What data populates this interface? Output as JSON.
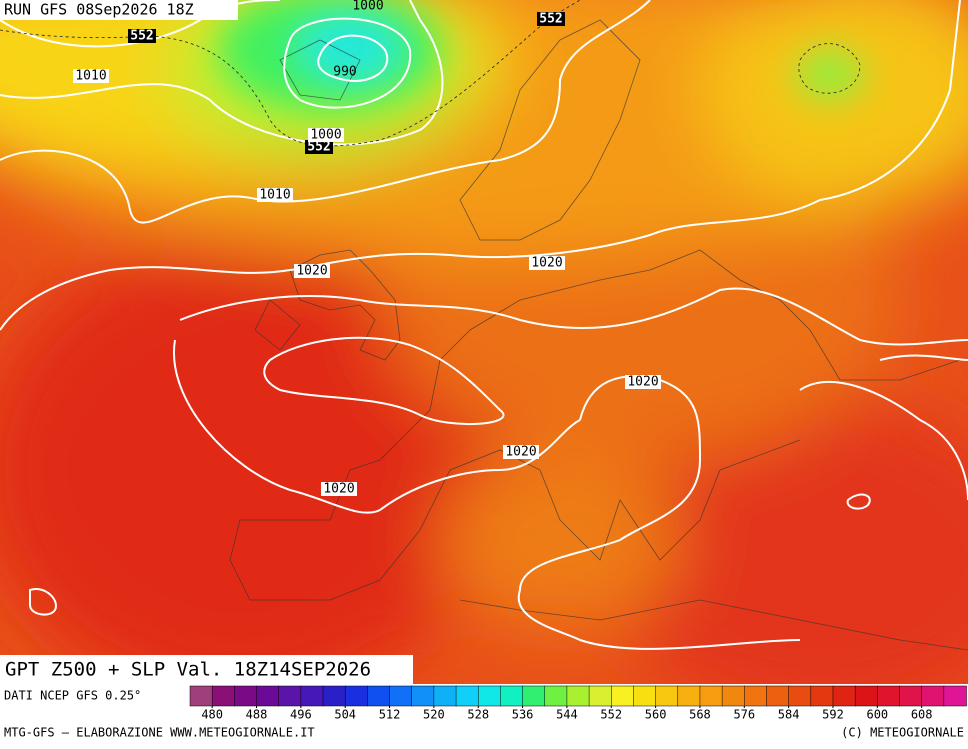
{
  "header": {
    "run": "RUN GFS 08Sep2026 18Z"
  },
  "title": "GPT Z500 + SLP Val. 18Z14SEP2026",
  "map_labels": {
    "dark": [
      552,
      552,
      552
    ],
    "light": [
      1000,
      1010,
      990,
      1000,
      1010,
      1020,
      1020,
      1020,
      1020,
      1020
    ]
  },
  "colorbar": {
    "caption": "DATI NCEP GFS 0.25°",
    "lim": [
      476,
      616
    ],
    "ticks": [
      480,
      488,
      496,
      504,
      512,
      520,
      528,
      536,
      544,
      552,
      560,
      568,
      576,
      584,
      592,
      600,
      608
    ],
    "colors": [
      "#a0407a",
      "#8a1078",
      "#7a0a86",
      "#6a0a96",
      "#5a14a8",
      "#4618b8",
      "#2a20c8",
      "#1a30e0",
      "#1050f0",
      "#1070f8",
      "#1090f8",
      "#10b0f8",
      "#10d0f8",
      "#10e8e8",
      "#10f0c0",
      "#30f070",
      "#70f040",
      "#a8f030",
      "#d8f030",
      "#f8f020",
      "#f8e010",
      "#f8c810",
      "#f8b010",
      "#f89c10",
      "#f08810",
      "#f07410",
      "#ec6010",
      "#e84c10",
      "#e43810",
      "#e02414",
      "#dc1418",
      "#e0142c",
      "#e01448",
      "#e01470",
      "#e01496"
    ]
  },
  "footer": {
    "left": "MTG-GFS — ELABORAZIONE WWW.METEOGIORNALE.IT",
    "right": "(C) METEOGIORNALE"
  }
}
